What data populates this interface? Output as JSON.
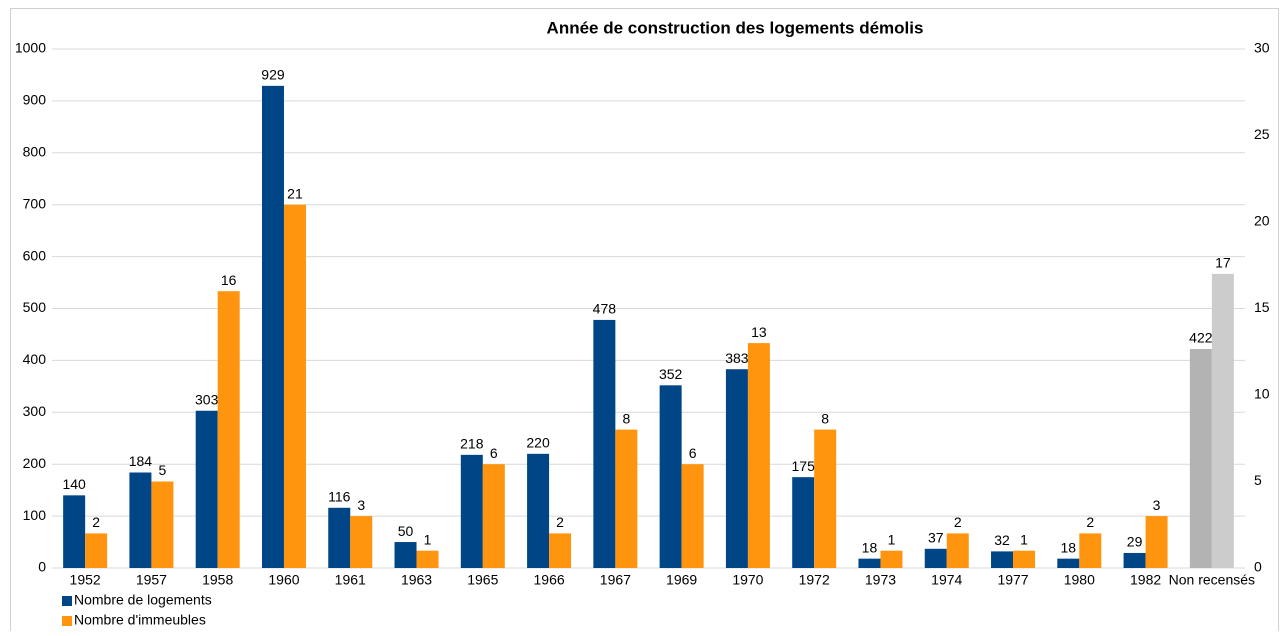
{
  "chart_data": {
    "type": "bar",
    "title": "Année de construction des logements démolis",
    "categories": [
      "1952",
      "1957",
      "1958",
      "1960",
      "1961",
      "1963",
      "1965",
      "1966",
      "1967",
      "1969",
      "1970",
      "1972",
      "1973",
      "1974",
      "1977",
      "1980",
      "1982",
      "Non recensés"
    ],
    "series": [
      {
        "name": "Nombre de logements",
        "color": "#004586",
        "axis": "y",
        "values": [
          140,
          184,
          303,
          929,
          116,
          50,
          218,
          220,
          478,
          352,
          383,
          175,
          18,
          37,
          32,
          18,
          29,
          422
        ],
        "colors": [
          "#004586",
          "#004586",
          "#004586",
          "#004586",
          "#004586",
          "#004586",
          "#004586",
          "#004586",
          "#004586",
          "#004586",
          "#004586",
          "#004586",
          "#004586",
          "#004586",
          "#004586",
          "#004586",
          "#004586",
          "#b3b3b3"
        ]
      },
      {
        "name": "Nombre d'immeubles",
        "color": "#ff950e",
        "axis": "y2",
        "values": [
          2,
          5,
          16,
          21,
          3,
          1,
          6,
          2,
          8,
          6,
          13,
          8,
          1,
          2,
          1,
          2,
          3,
          17
        ],
        "colors": [
          "#ff950e",
          "#ff950e",
          "#ff950e",
          "#ff950e",
          "#ff950e",
          "#ff950e",
          "#ff950e",
          "#ff950e",
          "#ff950e",
          "#ff950e",
          "#ff950e",
          "#ff950e",
          "#ff950e",
          "#ff950e",
          "#ff950e",
          "#ff950e",
          "#ff950e",
          "#cccccc"
        ]
      }
    ],
    "ylim": [
      0,
      1000
    ],
    "yticks": [
      0,
      100,
      200,
      300,
      400,
      500,
      600,
      700,
      800,
      900,
      1000
    ],
    "y2lim": [
      0,
      30
    ],
    "y2ticks": [
      0,
      5,
      10,
      15,
      20,
      25,
      30
    ],
    "grid": true,
    "legend": "bottom-left"
  }
}
